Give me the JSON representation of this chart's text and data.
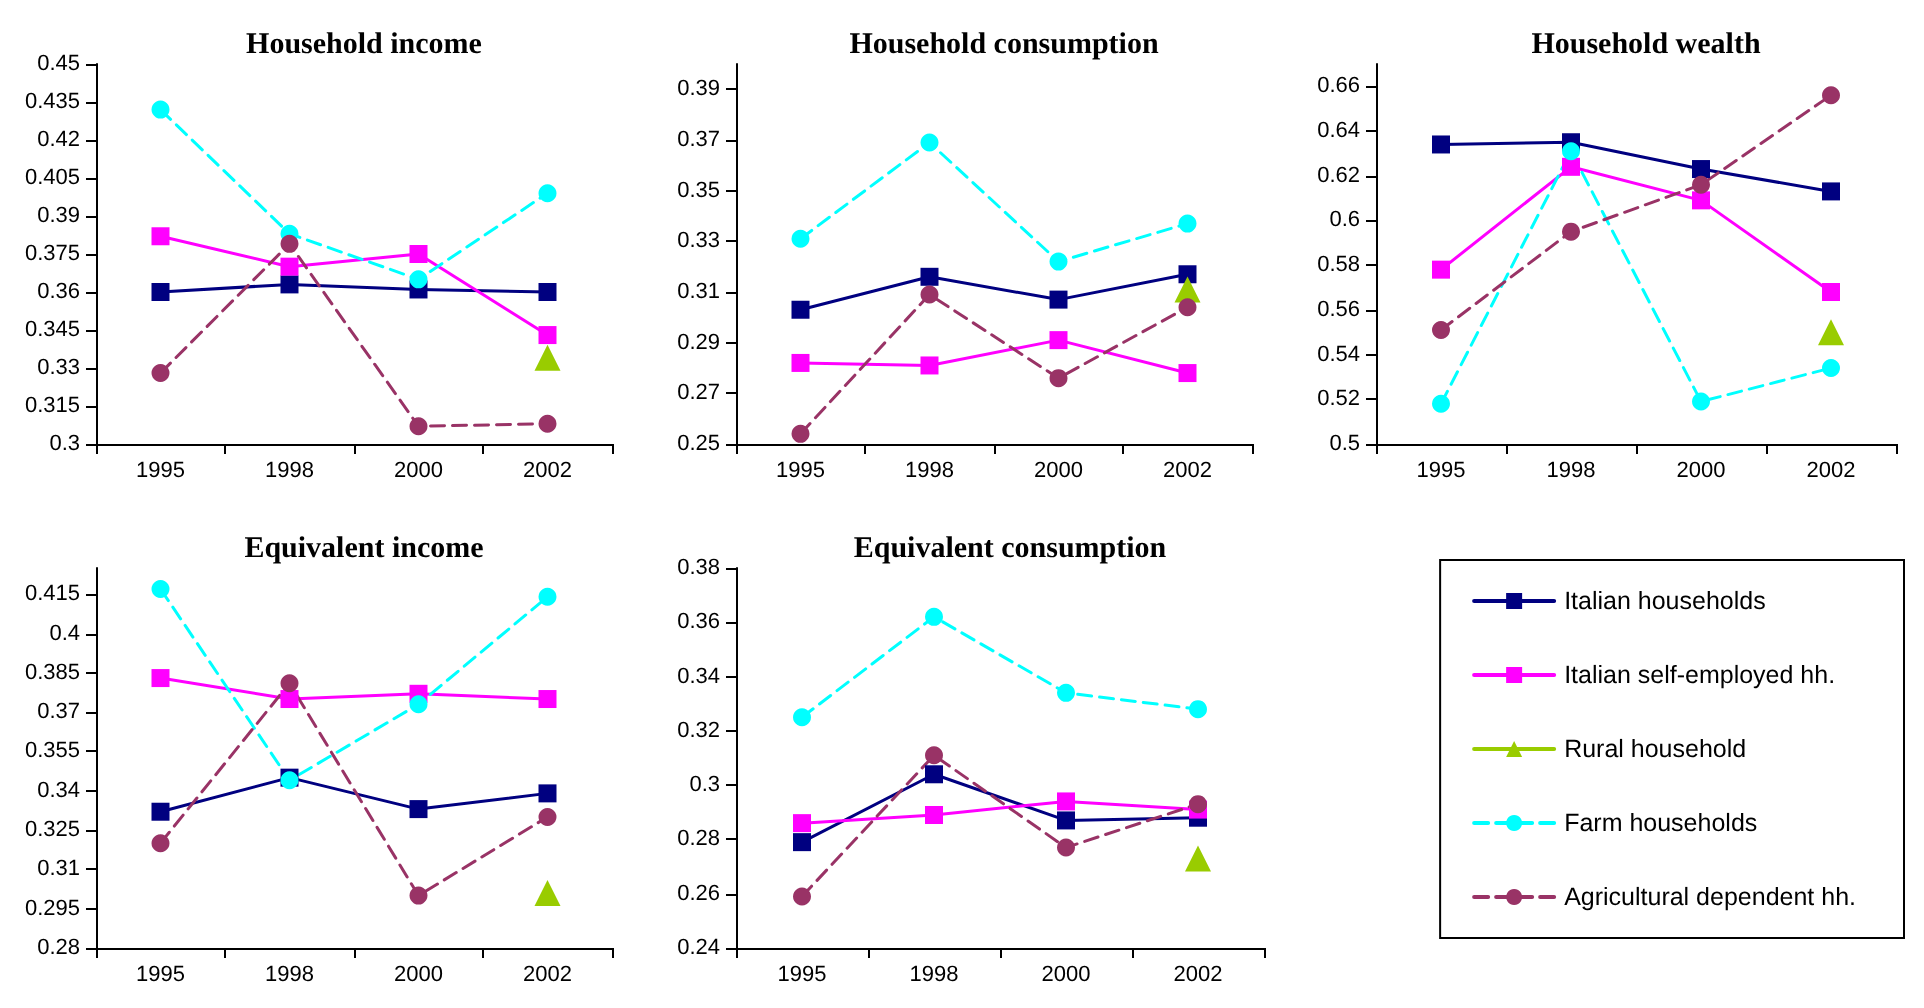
{
  "chart_data": [
    {
      "type": "line",
      "title": "Household income",
      "categories": [
        "1995",
        "1998",
        "2000",
        "2002"
      ],
      "ylim": [
        0.3,
        0.45
      ],
      "yticks": [
        0.3,
        0.315,
        0.33,
        0.345,
        0.36,
        0.375,
        0.39,
        0.405,
        0.42,
        0.435,
        0.45
      ],
      "grid": false,
      "series": [
        {
          "color": "#000080",
          "marker": "square",
          "line_style": "solid",
          "values": [
            0.36,
            0.363,
            0.361,
            0.36
          ]
        },
        {
          "color": "#ff00ff",
          "marker": "square",
          "line_style": "solid",
          "values": [
            0.382,
            0.37,
            0.375,
            0.343
          ]
        },
        {
          "color": "#99cc00",
          "marker": "triangle",
          "line_style": "solid",
          "values": [
            null,
            null,
            null,
            0.334
          ]
        },
        {
          "color": "#00ffff",
          "marker": "circle",
          "line_style": "dashed",
          "values": [
            0.432,
            0.383,
            0.365,
            0.399
          ]
        },
        {
          "color": "#993366",
          "marker": "circle",
          "line_style": "dashed",
          "values": [
            0.328,
            0.379,
            0.307,
            0.308
          ]
        }
      ]
    },
    {
      "type": "line",
      "title": "Household consumption",
      "categories": [
        "1995",
        "1998",
        "2000",
        "2002"
      ],
      "ylim": [
        0.25,
        0.4
      ],
      "yticks": [
        0.25,
        0.27,
        0.29,
        0.31,
        0.33,
        0.35,
        0.37,
        0.39
      ],
      "grid": false,
      "series": [
        {
          "color": "#000080",
          "marker": "square",
          "line_style": "solid",
          "values": [
            0.303,
            0.316,
            0.307,
            0.317
          ]
        },
        {
          "color": "#ff00ff",
          "marker": "square",
          "line_style": "solid",
          "values": [
            0.282,
            0.281,
            0.291,
            0.278
          ]
        },
        {
          "color": "#99cc00",
          "marker": "triangle",
          "line_style": "solid",
          "values": [
            null,
            null,
            null,
            0.311
          ]
        },
        {
          "color": "#00ffff",
          "marker": "circle",
          "line_style": "dashed",
          "values": [
            0.331,
            0.369,
            0.322,
            0.337
          ]
        },
        {
          "color": "#993366",
          "marker": "circle",
          "line_style": "dashed",
          "values": [
            0.254,
            0.309,
            0.276,
            0.304
          ]
        }
      ]
    },
    {
      "type": "line",
      "title": "Household wealth",
      "categories": [
        "1995",
        "1998",
        "2000",
        "2002"
      ],
      "ylim": [
        0.5,
        0.67
      ],
      "yticks": [
        0.5,
        0.52,
        0.54,
        0.56,
        0.58,
        0.6,
        0.62,
        0.64,
        0.66
      ],
      "grid": false,
      "series": [
        {
          "color": "#000080",
          "marker": "square",
          "line_style": "solid",
          "values": [
            0.634,
            0.635,
            0.623,
            0.613
          ]
        },
        {
          "color": "#ff00ff",
          "marker": "square",
          "line_style": "solid",
          "values": [
            0.578,
            0.624,
            0.609,
            0.568
          ]
        },
        {
          "color": "#99cc00",
          "marker": "triangle",
          "line_style": "solid",
          "values": [
            null,
            null,
            null,
            0.55
          ]
        },
        {
          "color": "#00ffff",
          "marker": "circle",
          "line_style": "dashed",
          "values": [
            0.518,
            0.631,
            0.519,
            0.534
          ]
        },
        {
          "color": "#993366",
          "marker": "circle",
          "line_style": "dashed",
          "values": [
            0.551,
            0.595,
            0.616,
            0.656
          ]
        }
      ]
    },
    {
      "type": "line",
      "title": "Equivalent income",
      "categories": [
        "1995",
        "1998",
        "2000",
        "2002"
      ],
      "ylim": [
        0.28,
        0.425
      ],
      "yticks": [
        0.28,
        0.295,
        0.31,
        0.325,
        0.34,
        0.355,
        0.37,
        0.385,
        0.4,
        0.415
      ],
      "grid": false,
      "series": [
        {
          "color": "#000080",
          "marker": "square",
          "line_style": "solid",
          "values": [
            0.332,
            0.345,
            0.333,
            0.339
          ]
        },
        {
          "color": "#ff00ff",
          "marker": "square",
          "line_style": "solid",
          "values": [
            0.383,
            0.375,
            0.377,
            0.375
          ]
        },
        {
          "color": "#99cc00",
          "marker": "triangle",
          "line_style": "solid",
          "values": [
            null,
            null,
            null,
            0.301
          ]
        },
        {
          "color": "#00ffff",
          "marker": "circle",
          "line_style": "dashed",
          "values": [
            0.417,
            0.344,
            0.373,
            0.414
          ]
        },
        {
          "color": "#993366",
          "marker": "circle",
          "line_style": "dashed",
          "values": [
            0.32,
            0.381,
            0.3,
            0.33
          ]
        }
      ]
    },
    {
      "type": "line",
      "title": "Equivalent consumption",
      "categories": [
        "1995",
        "1998",
        "2000",
        "2002"
      ],
      "ylim": [
        0.24,
        0.38
      ],
      "yticks": [
        0.24,
        0.26,
        0.28,
        0.3,
        0.32,
        0.34,
        0.36,
        0.38
      ],
      "grid": false,
      "legend": "right",
      "series": [
        {
          "name": "Italian households",
          "color": "#000080",
          "marker": "square",
          "line_style": "solid",
          "values": [
            0.279,
            0.304,
            0.287,
            0.288
          ]
        },
        {
          "name": "Italian self-employed hh.",
          "color": "#ff00ff",
          "marker": "square",
          "line_style": "solid",
          "values": [
            0.286,
            0.289,
            0.294,
            0.291
          ]
        },
        {
          "name": "Rural household",
          "color": "#99cc00",
          "marker": "triangle",
          "line_style": "solid",
          "values": [
            null,
            null,
            null,
            0.273
          ]
        },
        {
          "name": "Farm households",
          "color": "#00ffff",
          "marker": "circle",
          "line_style": "dashed",
          "values": [
            0.325,
            0.362,
            0.334,
            0.328
          ]
        },
        {
          "name": "Agricultural dependent hh.",
          "color": "#993366",
          "marker": "circle",
          "line_style": "dashed",
          "values": [
            0.259,
            0.311,
            0.277,
            0.293
          ]
        }
      ]
    }
  ]
}
